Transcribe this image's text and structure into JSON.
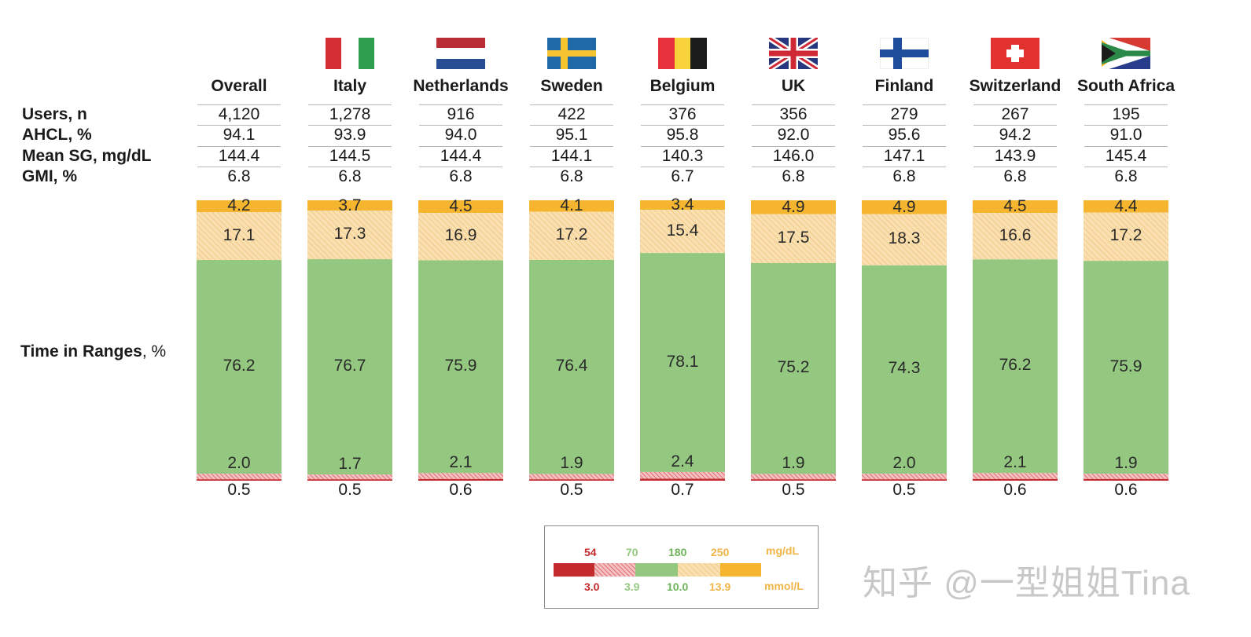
{
  "row_labels": {
    "users": "Users, n",
    "ahcl": "AHCL, %",
    "mean_sg": "Mean SG, mg/dL",
    "gmi": "GMI, %",
    "tir_bold": "Time in Ranges",
    "tir_unit": ", %"
  },
  "colors": {
    "very_high": "#f5b52e",
    "high": "#fae0b0",
    "high_stripe": "#efc37e",
    "in_range": "#94c881",
    "low": "#f4c2c2",
    "low_stripe": "#d9454b",
    "very_low": "#c42b2f",
    "legend_mgdl": "#f0b546",
    "legend_mmol": "#f0b546"
  },
  "chart_data": {
    "type": "bar",
    "stacked": true,
    "title": "Time in Ranges, %",
    "categories": [
      "Overall",
      "Italy",
      "Netherlands",
      "Sweden",
      "Belgium",
      "UK",
      "Finland",
      "Switzerland",
      "South Africa"
    ],
    "flags": [
      "",
      "italy-flag",
      "netherlands-flag",
      "sweden-flag",
      "belgium-flag",
      "uk-flag",
      "finland-flag",
      "switzerland-flag",
      "south-africa-flag"
    ],
    "stats": {
      "users": [
        "4,120",
        "1,278",
        "916",
        "422",
        "376",
        "356",
        "279",
        "267",
        "195"
      ],
      "ahcl": [
        "94.1",
        "93.9",
        "94.0",
        "95.1",
        "95.8",
        "92.0",
        "95.6",
        "94.2",
        "91.0"
      ],
      "mean_sg": [
        "144.4",
        "144.5",
        "144.4",
        "144.1",
        "140.3",
        "146.0",
        "147.1",
        "143.9",
        "145.4"
      ],
      "gmi": [
        "6.8",
        "6.8",
        "6.8",
        "6.8",
        "6.7",
        "6.8",
        "6.8",
        "6.8",
        "6.8"
      ]
    },
    "series": [
      {
        "name": ">250 mg/dL (>13.9 mmol/L)",
        "key": "very_high",
        "values": [
          4.2,
          3.7,
          4.5,
          4.1,
          3.4,
          4.9,
          4.9,
          4.5,
          4.4
        ],
        "labels": [
          "4.2",
          "3.7",
          "4.5",
          "4.1",
          "3.4",
          "4.9",
          "4.9",
          "4.5",
          "4.4"
        ]
      },
      {
        "name": "180-250 mg/dL (10.0-13.9 mmol/L)",
        "key": "high",
        "values": [
          17.1,
          17.3,
          16.9,
          17.2,
          15.4,
          17.5,
          18.3,
          16.6,
          17.2
        ],
        "labels": [
          "17.1",
          "17.3",
          "16.9",
          "17.2",
          "15.4",
          "17.5",
          "18.3",
          "16.6",
          "17.2"
        ]
      },
      {
        "name": "70-180 mg/dL (3.9-10.0 mmol/L)",
        "key": "in_range",
        "values": [
          76.2,
          76.7,
          75.9,
          76.4,
          78.1,
          75.2,
          74.3,
          76.2,
          75.9
        ],
        "labels": [
          "76.2",
          "76.7",
          "75.9",
          "76.4",
          "78.1",
          "75.2",
          "74.3",
          "76.2",
          "75.9"
        ]
      },
      {
        "name": "54-70 mg/dL (3.0-3.9 mmol/L)",
        "key": "low",
        "values": [
          2.0,
          1.7,
          2.1,
          1.9,
          2.4,
          1.9,
          2.0,
          2.1,
          1.9
        ],
        "labels": [
          "2.0",
          "1.7",
          "2.1",
          "1.9",
          "2.4",
          "1.9",
          "2.0",
          "2.1",
          "1.9"
        ]
      },
      {
        "name": "<54 mg/dL (<3.0 mmol/L)",
        "key": "very_low",
        "values": [
          0.5,
          0.5,
          0.6,
          0.5,
          0.7,
          0.5,
          0.5,
          0.6,
          0.6
        ],
        "labels": [
          "0.5",
          "0.5",
          "0.6",
          "0.5",
          "0.7",
          "0.5",
          "0.5",
          "0.6",
          "0.6"
        ]
      }
    ],
    "ylim": [
      0,
      100
    ]
  },
  "legend": {
    "mgdl": [
      "54",
      "70",
      "180",
      "250"
    ],
    "mgdl_unit": "mg/dL",
    "mmol": [
      "3.0",
      "3.9",
      "10.0",
      "13.9"
    ],
    "mmol_unit": "mmol/L"
  },
  "watermark": "知乎 @一型姐姐Tina"
}
